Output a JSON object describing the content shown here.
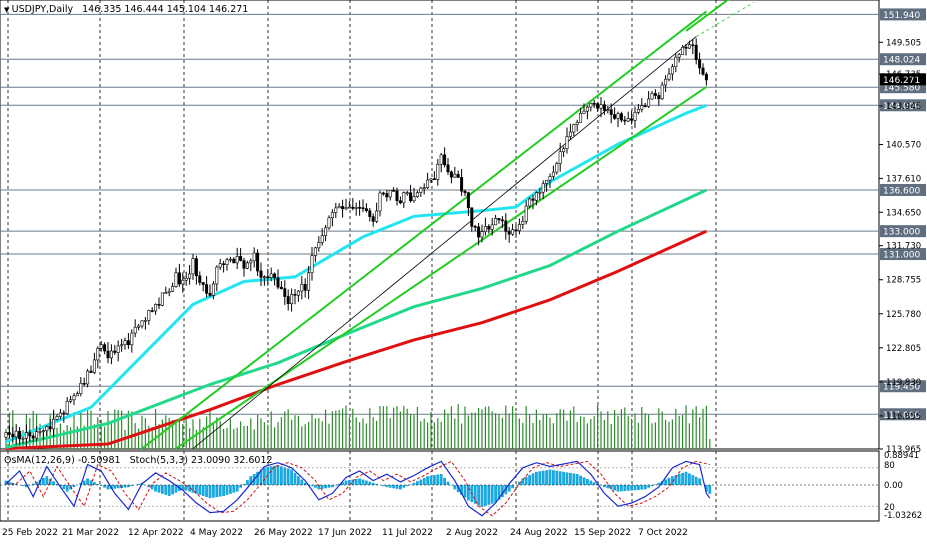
{
  "header": {
    "symbol": "USDJPY,Daily",
    "ohlc": "146.335 146.444 145.104 146.271"
  },
  "indicator_header": {
    "osma": "OsMA(12,26,9) -0.50981",
    "stoch": "Stoch(5,3,3) 23.0090 32.6012"
  },
  "colors": {
    "candle": "#000000",
    "volume": "#2e8b2e",
    "ema50": "#22e5f0",
    "ema144": "#22d88a",
    "ema200": "#e01010",
    "channel": "#22cc22",
    "osma": "#1aa8e0",
    "stoch_main": "#1a2ad0",
    "stoch_signal": "#d01010",
    "level_line": "#6b7b8b",
    "grid": "#000000"
  },
  "chart_data": {
    "type": "candlestick",
    "y_range": [
      113.965,
      153.2
    ],
    "price_axis_ticks": [
      "149.505",
      "146.735",
      "143.945",
      "140.570",
      "137.610",
      "134.650",
      "131.730",
      "128.755",
      "125.780",
      "122.805",
      "119.830",
      "116.855",
      "113.965"
    ],
    "level_labels": [
      "151.940",
      "148.024",
      "145.580",
      "144.000",
      "136.600",
      "133.000",
      "131.000",
      "119.450",
      "117.000"
    ],
    "last_price_label": "146.271",
    "date_labels": [
      "25 Feb 2022",
      "21 Mar 2022",
      "12 Apr 2022",
      "4 May 2022",
      "26 May 2022",
      "17 Jun 2022",
      "11 Jul 2022",
      "2 Aug 2022",
      "24 Aug 2022",
      "15 Sep 2022",
      "7 Oct 2022"
    ],
    "osma_axis_labels": [
      "0.88941",
      "0.00",
      "-1.03262"
    ],
    "stoch_axis_labels": [
      "80",
      "20"
    ],
    "close_anchors": [
      [
        0,
        115.0
      ],
      [
        10,
        115.4
      ],
      [
        15,
        116.6
      ],
      [
        20,
        118.6
      ],
      [
        25,
        120.8
      ],
      [
        28,
        123.5
      ],
      [
        30,
        122.0
      ],
      [
        35,
        123.0
      ],
      [
        40,
        125.3
      ],
      [
        45,
        126.9
      ],
      [
        50,
        129.0
      ],
      [
        52,
        128.3
      ],
      [
        55,
        130.2
      ],
      [
        57,
        128.6
      ],
      [
        60,
        127.5
      ],
      [
        62,
        130.0
      ],
      [
        65,
        130.1
      ],
      [
        68,
        130.6
      ],
      [
        70,
        129.8
      ],
      [
        73,
        130.7
      ],
      [
        75,
        128.7
      ],
      [
        78,
        129.5
      ],
      [
        80,
        128.3
      ],
      [
        83,
        127.1
      ],
      [
        86,
        127.9
      ],
      [
        88,
        128.2
      ],
      [
        90,
        130.5
      ],
      [
        93,
        133.0
      ],
      [
        96,
        134.5
      ],
      [
        100,
        135.0
      ],
      [
        105,
        135.1
      ],
      [
        108,
        134.2
      ],
      [
        110,
        136.1
      ],
      [
        113,
        136.6
      ],
      [
        116,
        135.6
      ],
      [
        118,
        136.3
      ],
      [
        120,
        135.7
      ],
      [
        123,
        137.0
      ],
      [
        126,
        137.8
      ],
      [
        128,
        139.4
      ],
      [
        130,
        138.5
      ],
      [
        133,
        137.4
      ],
      [
        135,
        136.2
      ],
      [
        137,
        133.2
      ],
      [
        140,
        132.8
      ],
      [
        142,
        133.5
      ],
      [
        145,
        134.0
      ],
      [
        147,
        133.2
      ],
      [
        149,
        132.8
      ],
      [
        151,
        133.6
      ],
      [
        153,
        135.0
      ],
      [
        156,
        136.3
      ],
      [
        158,
        137.0
      ],
      [
        160,
        137.5
      ],
      [
        162,
        139.0
      ],
      [
        165,
        141.4
      ],
      [
        168,
        142.9
      ],
      [
        170,
        143.5
      ],
      [
        172,
        144.3
      ],
      [
        175,
        143.8
      ],
      [
        178,
        143.4
      ],
      [
        180,
        143.2
      ],
      [
        182,
        142.8
      ],
      [
        184,
        143.0
      ],
      [
        186,
        143.4
      ],
      [
        188,
        144.3
      ],
      [
        190,
        144.6
      ],
      [
        192,
        145.0
      ],
      [
        195,
        146.3
      ],
      [
        197,
        148.3
      ],
      [
        199,
        148.8
      ],
      [
        201,
        149.3
      ],
      [
        203,
        148.4
      ],
      [
        204,
        147.6
      ],
      [
        206,
        146.3
      ]
    ],
    "ema50_points": [
      [
        0,
        114.6
      ],
      [
        25,
        117.6
      ],
      [
        55,
        126.6
      ],
      [
        70,
        128.6
      ],
      [
        85,
        129.0
      ],
      [
        105,
        132.5
      ],
      [
        120,
        134.3
      ],
      [
        140,
        134.8
      ],
      [
        150,
        135.1
      ],
      [
        160,
        137.3
      ],
      [
        180,
        140.6
      ],
      [
        200,
        143.3
      ],
      [
        206,
        144.0
      ]
    ],
    "ema144_points": [
      [
        0,
        114.1
      ],
      [
        30,
        116.2
      ],
      [
        60,
        119.6
      ],
      [
        80,
        121.5
      ],
      [
        100,
        124.0
      ],
      [
        120,
        126.4
      ],
      [
        140,
        128.0
      ],
      [
        160,
        130.0
      ],
      [
        180,
        133.0
      ],
      [
        206,
        136.6
      ]
    ],
    "ema200_points": [
      [
        0,
        114.0
      ],
      [
        30,
        114.4
      ],
      [
        60,
        117.4
      ],
      [
        80,
        119.6
      ],
      [
        100,
        121.6
      ],
      [
        120,
        123.5
      ],
      [
        140,
        125.0
      ],
      [
        160,
        127.0
      ],
      [
        180,
        129.5
      ],
      [
        206,
        133.0
      ]
    ],
    "channel_upper": [
      [
        40,
        114.0
      ],
      [
        206,
        152.2
      ]
    ],
    "channel_lower": [
      [
        50,
        114.0
      ],
      [
        206,
        145.6
      ]
    ],
    "channel_upper_ext": [
      [
        200,
        150.5
      ],
      [
        234,
        158.0
      ]
    ],
    "thin_line": [
      [
        55,
        114.0
      ],
      [
        203,
        150.0
      ]
    ],
    "thin_dashed": [
      [
        203,
        150.0
      ],
      [
        220,
        153.0
      ]
    ],
    "stoch_points": [
      [
        0,
        55
      ],
      [
        4,
        75
      ],
      [
        8,
        35
      ],
      [
        12,
        82
      ],
      [
        16,
        50
      ],
      [
        20,
        20
      ],
      [
        24,
        85
      ],
      [
        28,
        75
      ],
      [
        32,
        40
      ],
      [
        36,
        15
      ],
      [
        40,
        55
      ],
      [
        44,
        72
      ],
      [
        48,
        60
      ],
      [
        52,
        45
      ],
      [
        56,
        25
      ],
      [
        60,
        10
      ],
      [
        64,
        12
      ],
      [
        68,
        30
      ],
      [
        72,
        55
      ],
      [
        76,
        82
      ],
      [
        80,
        88
      ],
      [
        84,
        80
      ],
      [
        88,
        60
      ],
      [
        92,
        30
      ],
      [
        96,
        40
      ],
      [
        100,
        65
      ],
      [
        104,
        75
      ],
      [
        108,
        60
      ],
      [
        112,
        70
      ],
      [
        116,
        58
      ],
      [
        120,
        68
      ],
      [
        124,
        80
      ],
      [
        128,
        90
      ],
      [
        132,
        60
      ],
      [
        136,
        20
      ],
      [
        140,
        5
      ],
      [
        144,
        25
      ],
      [
        148,
        55
      ],
      [
        152,
        80
      ],
      [
        156,
        88
      ],
      [
        160,
        82
      ],
      [
        164,
        86
      ],
      [
        168,
        90
      ],
      [
        172,
        70
      ],
      [
        176,
        40
      ],
      [
        180,
        20
      ],
      [
        184,
        25
      ],
      [
        188,
        35
      ],
      [
        192,
        50
      ],
      [
        196,
        80
      ],
      [
        200,
        90
      ],
      [
        204,
        85
      ],
      [
        206,
        40
      ],
      [
        208,
        25
      ]
    ],
    "osma_points": [
      [
        0,
        0.2
      ],
      [
        6,
        -0.1
      ],
      [
        12,
        0.4
      ],
      [
        18,
        -0.3
      ],
      [
        24,
        0.3
      ],
      [
        30,
        -0.2
      ],
      [
        36,
        -0.1
      ],
      [
        40,
        0.1
      ],
      [
        44,
        -0.3
      ],
      [
        48,
        -0.5
      ],
      [
        52,
        -0.2
      ],
      [
        56,
        -0.4
      ],
      [
        60,
        -0.6
      ],
      [
        64,
        -0.5
      ],
      [
        68,
        -0.3
      ],
      [
        72,
        0.4
      ],
      [
        76,
        0.8
      ],
      [
        80,
        0.9
      ],
      [
        84,
        0.7
      ],
      [
        88,
        0.1
      ],
      [
        92,
        -0.2
      ],
      [
        96,
        -0.1
      ],
      [
        100,
        0.2
      ],
      [
        104,
        0.3
      ],
      [
        108,
        0.1
      ],
      [
        112,
        -0.1
      ],
      [
        116,
        -0.2
      ],
      [
        120,
        0.1
      ],
      [
        124,
        0.4
      ],
      [
        128,
        0.5
      ],
      [
        132,
        -0.2
      ],
      [
        136,
        -0.7
      ],
      [
        140,
        -1.0
      ],
      [
        144,
        -0.8
      ],
      [
        148,
        -0.3
      ],
      [
        152,
        0.3
      ],
      [
        156,
        0.6
      ],
      [
        160,
        0.7
      ],
      [
        164,
        0.6
      ],
      [
        168,
        0.5
      ],
      [
        172,
        0.2
      ],
      [
        176,
        -0.1
      ],
      [
        180,
        -0.3
      ],
      [
        184,
        -0.25
      ],
      [
        188,
        -0.2
      ],
      [
        192,
        0.1
      ],
      [
        196,
        0.4
      ],
      [
        200,
        0.6
      ],
      [
        204,
        0.3
      ],
      [
        206,
        -0.3
      ],
      [
        208,
        -0.5
      ]
    ]
  }
}
